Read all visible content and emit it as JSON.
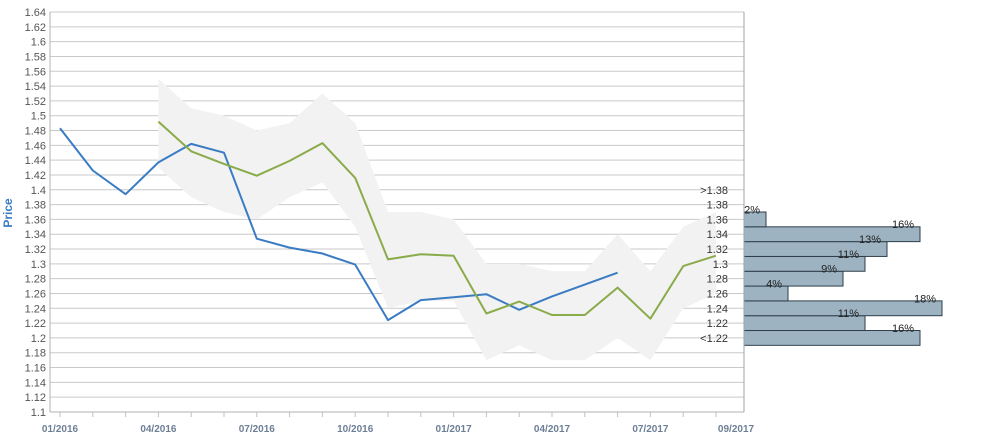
{
  "chart_data": {
    "type": "line",
    "ylabel": "Price",
    "ylim": [
      1.1,
      1.64
    ],
    "ytick_step": 0.02,
    "x_ticks": [
      "01/2016",
      "04/2016",
      "07/2016",
      "10/2016",
      "01/2017",
      "04/2017",
      "07/2017",
      "09/2017"
    ],
    "grid": true,
    "colors": {
      "series1": "#3a7cc3",
      "series2": "#8aab4a",
      "band": "#f2f2f2",
      "bars": "#9db3c2"
    },
    "series": [
      {
        "x": [
          "2016-01",
          "2016-02",
          "2016-03",
          "2016-04",
          "2016-05",
          "2016-06",
          "2016-07",
          "2016-08",
          "2016-09",
          "2016-10",
          "2016-11",
          "2016-12",
          "2017-01",
          "2017-02",
          "2017-03",
          "2017-04",
          "2017-05",
          "2017-06"
        ],
        "values": [
          1.483,
          1.426,
          1.394,
          1.437,
          1.462,
          1.45,
          1.334,
          1.322,
          1.314,
          1.299,
          1.224,
          1.251,
          1.255,
          1.259,
          1.238,
          1.256,
          1.272,
          1.288
        ]
      },
      {
        "x": [
          "2016-04",
          "2016-05",
          "2016-06",
          "2016-07",
          "2016-08",
          "2016-09",
          "2016-10",
          "2016-11",
          "2016-12",
          "2017-01",
          "2017-02",
          "2017-03",
          "2017-04",
          "2017-05",
          "2017-06",
          "2017-07",
          "2017-08",
          "2017-09"
        ],
        "values": [
          1.492,
          1.452,
          1.435,
          1.419,
          1.439,
          1.463,
          1.416,
          1.306,
          1.313,
          1.311,
          1.233,
          1.249,
          1.231,
          1.231,
          1.268,
          1.226,
          1.297,
          1.311
        ]
      }
    ],
    "band": {
      "x": [
        "2016-04",
        "2016-05",
        "2016-06",
        "2016-07",
        "2016-08",
        "2016-09",
        "2016-10",
        "2016-11",
        "2016-12",
        "2017-01",
        "2017-02",
        "2017-03",
        "2017-04",
        "2017-05",
        "2017-06",
        "2017-07",
        "2017-08",
        "2017-09"
      ],
      "upper": [
        1.55,
        1.51,
        1.5,
        1.48,
        1.49,
        1.53,
        1.49,
        1.37,
        1.37,
        1.36,
        1.3,
        1.3,
        1.29,
        1.29,
        1.34,
        1.29,
        1.35,
        1.37
      ],
      "lower": [
        1.43,
        1.39,
        1.37,
        1.36,
        1.39,
        1.41,
        1.35,
        1.24,
        1.25,
        1.25,
        1.17,
        1.19,
        1.17,
        1.17,
        1.2,
        1.17,
        1.24,
        1.26
      ]
    },
    "distribution": {
      "type": "bar",
      "bins": [
        {
          "label": "<1.22",
          "value": 16
        },
        {
          "label": "1.22",
          "value": 11
        },
        {
          "label": "1.24",
          "value": 18
        },
        {
          "label": "1.26",
          "value": 4
        },
        {
          "label": "1.28",
          "value": 9
        },
        {
          "label": "1.3",
          "value": 11
        },
        {
          "label": "1.32",
          "value": 13
        },
        {
          "label": "1.34",
          "value": 16
        },
        {
          "label": "1.36",
          "value": 2
        },
        {
          "label": "1.38",
          "value": 0
        },
        {
          "label": ">1.38",
          "value": 0
        }
      ],
      "value_suffix": "%"
    }
  }
}
